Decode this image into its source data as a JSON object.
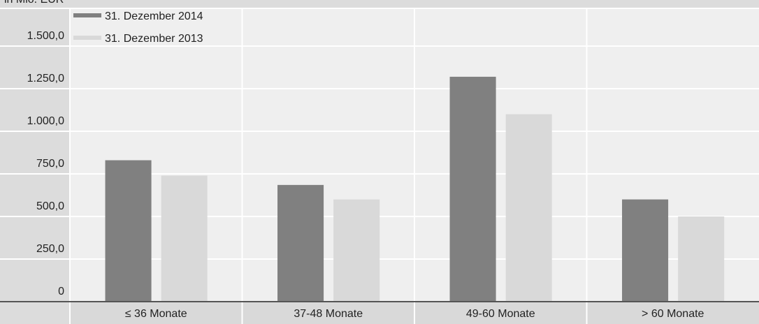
{
  "chart_data": {
    "type": "bar",
    "unit_label": "in Mio. EUR",
    "categories": [
      "≤ 36 Monate",
      "37-48 Monate",
      "49-60 Monate",
      "> 60 Monate"
    ],
    "series": [
      {
        "name": "31. Dezember 2014",
        "color": "#808080",
        "values": [
          830,
          685,
          1320,
          600
        ]
      },
      {
        "name": "31. Dezember 2013",
        "color": "#d9d9d9",
        "values": [
          740,
          600,
          1100,
          500
        ]
      }
    ],
    "ylim": [
      0,
      1750
    ],
    "yticks": [
      0,
      {
        "value": 250,
        "label": "250,0"
      },
      {
        "value": 500,
        "label": "500,0"
      },
      {
        "value": 750,
        "label": "750,0"
      },
      {
        "value": 1000,
        "label": "1.000,0"
      },
      {
        "value": 1250,
        "label": "1.250,0"
      },
      {
        "value": 1500,
        "label": "1.500,0"
      }
    ],
    "grid": true,
    "legend": "top-left"
  }
}
